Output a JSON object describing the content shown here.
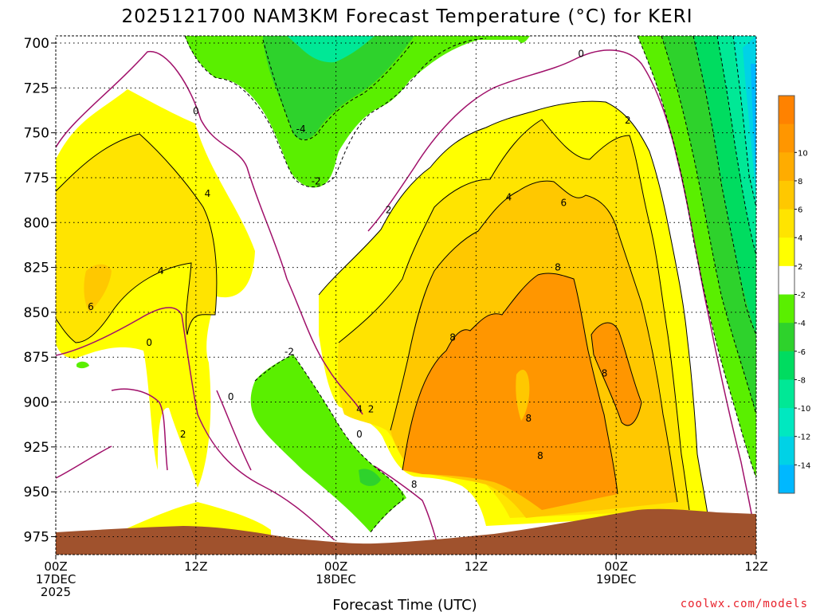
{
  "colors": {
    "ground": "#a0522d",
    "contour_zero": "#a0106a",
    "grid": "#000000",
    "credit": "#e8202a"
  },
  "chart_data": {
    "type": "heatmap",
    "title": "2025121700 NAM3KM Forecast Temperature (°C) for KERI",
    "xlabel": "Forecast Time (UTC)",
    "ylabel": "",
    "credit": "coolwx.com/models",
    "y_axis": {
      "unit": "hPa",
      "inverted": true,
      "range": [
        985,
        696
      ],
      "ticks": [
        700,
        725,
        750,
        775,
        800,
        825,
        850,
        875,
        900,
        925,
        950,
        975
      ]
    },
    "x_axis": {
      "unit": "forecast hour",
      "range": [
        0,
        60
      ],
      "ticks": [
        {
          "hour": 0,
          "lines": [
            "00Z",
            "17DEC",
            "2025"
          ]
        },
        {
          "hour": 12,
          "lines": [
            "12Z"
          ]
        },
        {
          "hour": 24,
          "lines": [
            "00Z",
            "18DEC"
          ]
        },
        {
          "hour": 36,
          "lines": [
            "12Z"
          ]
        },
        {
          "hour": 48,
          "lines": [
            "00Z",
            "19DEC"
          ]
        },
        {
          "hour": 60,
          "lines": [
            "12Z"
          ]
        }
      ]
    },
    "grid": true,
    "legend": {
      "position": "right",
      "colors": [
        "#00b8ff",
        "#00d2e6",
        "#00e8c0",
        "#00e896",
        "#00dc60",
        "#2ed22c",
        "#5aef00",
        "#ffffff",
        "#ffff00",
        "#ffe400",
        "#ffc800",
        "#ffac00",
        "#ff9600",
        "#ff8200"
      ],
      "labels": [
        "-14",
        "-12",
        "-10",
        "-8",
        "-6",
        "-4",
        "-2",
        "2",
        "4",
        "6",
        "8",
        "10"
      ]
    },
    "contour_labels": [
      {
        "text": "0",
        "hour": 12.0,
        "p": 738
      },
      {
        "text": "0",
        "hour": 45.0,
        "p": 706
      },
      {
        "text": "0",
        "hour": 8.0,
        "p": 867
      },
      {
        "text": "0",
        "hour": 15.0,
        "p": 897
      },
      {
        "text": "0",
        "hour": 26.0,
        "p": 918
      },
      {
        "text": "-4",
        "hour": 21.0,
        "p": 748
      },
      {
        "text": "-2",
        "hour": 22.3,
        "p": 777
      },
      {
        "text": "-2",
        "hour": 20.0,
        "p": 872
      },
      {
        "text": "2",
        "hour": 28.5,
        "p": 793
      },
      {
        "text": "2",
        "hour": 10.9,
        "p": 918
      },
      {
        "text": "2",
        "hour": 27.0,
        "p": 904
      },
      {
        "text": "2",
        "hour": 49.0,
        "p": 743
      },
      {
        "text": "4",
        "hour": 13.0,
        "p": 784
      },
      {
        "text": "4",
        "hour": 9.0,
        "p": 827
      },
      {
        "text": "4",
        "hour": 26.0,
        "p": 904
      },
      {
        "text": "4",
        "hour": 38.8,
        "p": 786
      },
      {
        "text": "6",
        "hour": 3.0,
        "p": 847
      },
      {
        "text": "6",
        "hour": 43.5,
        "p": 789
      },
      {
        "text": "8",
        "hour": 34.0,
        "p": 864
      },
      {
        "text": "8",
        "hour": 43.0,
        "p": 825
      },
      {
        "text": "8",
        "hour": 40.5,
        "p": 909
      },
      {
        "text": "8",
        "hour": 41.5,
        "p": 930
      },
      {
        "text": "8",
        "hour": 47.0,
        "p": 884
      },
      {
        "text": "8",
        "hour": 30.7,
        "p": 946
      }
    ]
  }
}
